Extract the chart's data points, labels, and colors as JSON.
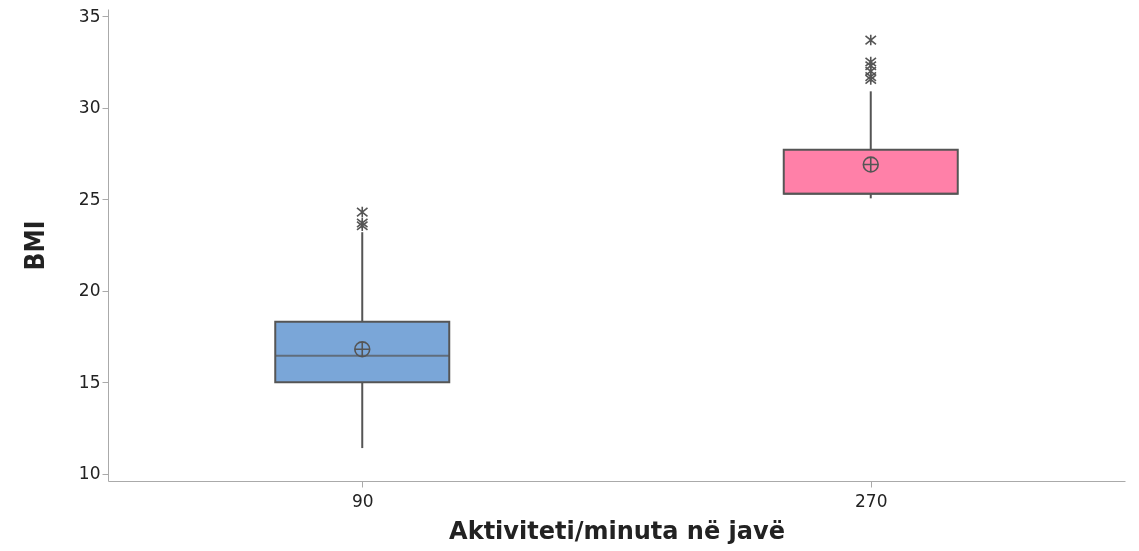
{
  "chart_data": {
    "type": "box",
    "xlabel": "Aktiviteti/minuta në javë",
    "ylabel": "BMI",
    "categories": [
      "90",
      "270"
    ],
    "colors": [
      "#7aa6d8",
      "#ff80a8"
    ],
    "boxes": [
      {
        "low": 11.4,
        "q1": 15.0,
        "median": 16.45,
        "q3": 18.3,
        "high": 23.2,
        "mean": 16.8,
        "outliers": [
          23.55,
          23.7,
          24.3
        ]
      },
      {
        "low": 25.05,
        "q1": 25.3,
        "median": 25.3,
        "q3": 27.7,
        "high": 30.9,
        "mean": 26.9,
        "outliers": [
          31.55,
          31.7,
          32.0,
          32.3,
          32.5,
          33.7
        ]
      }
    ],
    "ylim": [
      9.6,
      35.4
    ],
    "yticks": [
      10,
      15,
      20,
      25,
      30,
      35
    ],
    "grid": false
  }
}
